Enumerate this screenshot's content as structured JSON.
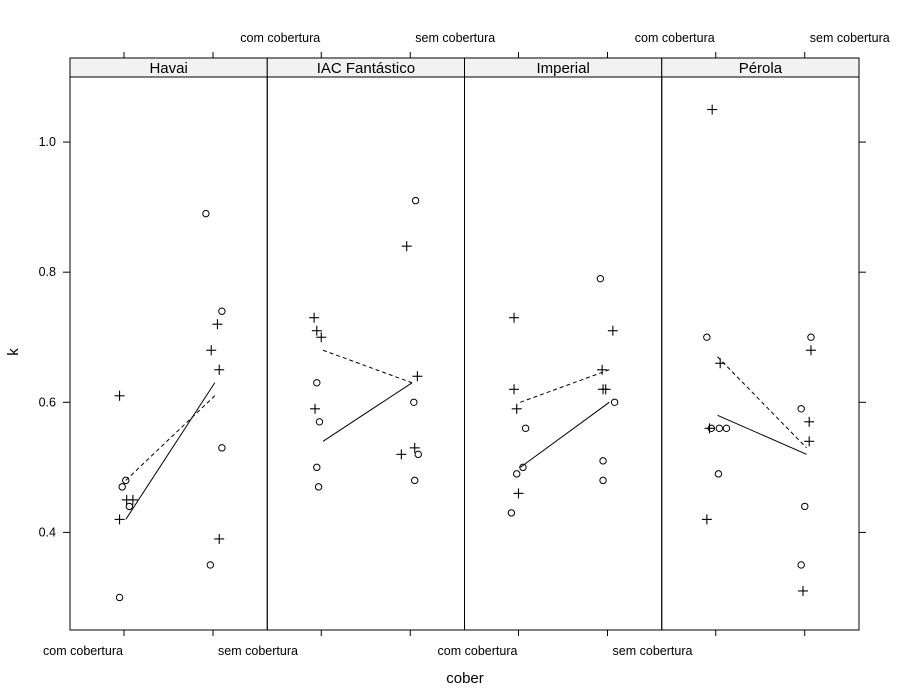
{
  "chart_data": {
    "type": "scatter",
    "xlabel": "cober",
    "ylabel": "k",
    "categories": [
      "com cobertura",
      "sem cobertura"
    ],
    "ylim": [
      0.25,
      1.1
    ],
    "yticks": [
      0.4,
      0.6,
      0.8,
      1.0
    ],
    "ytick_labels": [
      "0.4",
      "0.6",
      "0.8",
      "1.0"
    ],
    "panels": [
      {
        "name": "Havai",
        "circles": [
          [
            -0.05,
            0.3
          ],
          [
            -0.02,
            0.47
          ],
          [
            0.02,
            0.48
          ],
          [
            0.06,
            0.44
          ],
          [
            0.92,
            0.89
          ],
          [
            0.97,
            0.35
          ],
          [
            1.1,
            0.74
          ],
          [
            1.1,
            0.53
          ]
        ],
        "plus": [
          [
            -0.05,
            0.61
          ],
          [
            -0.05,
            0.42
          ],
          [
            0.03,
            0.45
          ],
          [
            0.1,
            0.45
          ],
          [
            0.98,
            0.68
          ],
          [
            1.05,
            0.72
          ],
          [
            1.07,
            0.65
          ],
          [
            1.07,
            0.39
          ]
        ],
        "solid_line": [
          [
            0.02,
            0.42
          ],
          [
            1.02,
            0.63
          ]
        ],
        "dashed_line": [
          [
            0.02,
            0.48
          ],
          [
            1.02,
            0.61
          ]
        ]
      },
      {
        "name": "IAC Fantástico",
        "circles": [
          [
            -0.05,
            0.63
          ],
          [
            -0.05,
            0.5
          ],
          [
            -0.02,
            0.57
          ],
          [
            -0.03,
            0.47
          ],
          [
            1.06,
            0.91
          ],
          [
            1.04,
            0.6
          ],
          [
            1.05,
            0.48
          ],
          [
            1.09,
            0.52
          ]
        ],
        "plus": [
          [
            -0.08,
            0.73
          ],
          [
            -0.05,
            0.71
          ],
          [
            0.0,
            0.7
          ],
          [
            -0.07,
            0.59
          ],
          [
            0.96,
            0.84
          ],
          [
            1.08,
            0.64
          ],
          [
            1.05,
            0.53
          ],
          [
            0.9,
            0.52
          ]
        ],
        "solid_line": [
          [
            0.02,
            0.54
          ],
          [
            1.02,
            0.63
          ]
        ],
        "dashed_line": [
          [
            0.02,
            0.68
          ],
          [
            1.02,
            0.63
          ]
        ]
      },
      {
        "name": "Imperial",
        "circles": [
          [
            -0.08,
            0.43
          ],
          [
            -0.02,
            0.49
          ],
          [
            0.05,
            0.5
          ],
          [
            0.08,
            0.56
          ],
          [
            0.92,
            0.79
          ],
          [
            0.95,
            0.51
          ],
          [
            0.95,
            0.48
          ],
          [
            1.08,
            0.6
          ]
        ],
        "plus": [
          [
            -0.05,
            0.73
          ],
          [
            -0.05,
            0.62
          ],
          [
            -0.02,
            0.59
          ],
          [
            0.0,
            0.46
          ],
          [
            0.94,
            0.65
          ],
          [
            0.95,
            0.62
          ],
          [
            0.98,
            0.62
          ],
          [
            1.06,
            0.71
          ]
        ],
        "solid_line": [
          [
            0.02,
            0.5
          ],
          [
            1.02,
            0.6
          ]
        ],
        "dashed_line": [
          [
            0.02,
            0.6
          ],
          [
            1.02,
            0.65
          ]
        ]
      },
      {
        "name": "Pérola",
        "circles": [
          [
            -0.1,
            0.7
          ],
          [
            -0.05,
            0.56
          ],
          [
            0.04,
            0.56
          ],
          [
            0.12,
            0.56
          ],
          [
            0.03,
            0.49
          ],
          [
            0.96,
            0.59
          ],
          [
            0.96,
            0.35
          ],
          [
            1.0,
            0.44
          ],
          [
            1.07,
            0.7
          ]
        ],
        "plus": [
          [
            -0.04,
            1.05
          ],
          [
            0.05,
            0.66
          ],
          [
            -0.07,
            0.56
          ],
          [
            -0.1,
            0.42
          ],
          [
            1.07,
            0.68
          ],
          [
            1.05,
            0.57
          ],
          [
            1.05,
            0.54
          ],
          [
            0.98,
            0.31
          ]
        ],
        "solid_line": [
          [
            0.02,
            0.58
          ],
          [
            1.02,
            0.52
          ]
        ],
        "dashed_line": [
          [
            0.02,
            0.67
          ],
          [
            1.02,
            0.53
          ]
        ]
      }
    ]
  }
}
